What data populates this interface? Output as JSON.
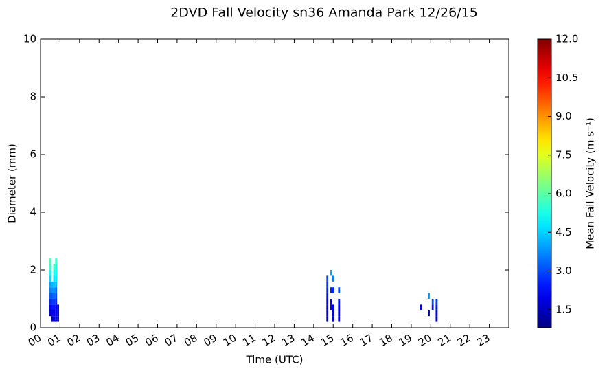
{
  "chart_data": {
    "type": "heatmap",
    "title": "2DVD Fall Velocity sn36 Amanda Park 12/26/15",
    "x_label": "Time (UTC)",
    "y_label": "Diameter (mm)",
    "colorbar_label": "Mean Fall Velocity (m s⁻¹)",
    "colormap": "jet",
    "xlim": [
      0,
      24
    ],
    "ylim": [
      0,
      10
    ],
    "clim": [
      0.8,
      12
    ],
    "xticks": [
      {
        "value": 0,
        "label": "00"
      },
      {
        "value": 1,
        "label": "01"
      },
      {
        "value": 2,
        "label": "02"
      },
      {
        "value": 3,
        "label": "03"
      },
      {
        "value": 4,
        "label": "04"
      },
      {
        "value": 5,
        "label": "05"
      },
      {
        "value": 6,
        "label": "06"
      },
      {
        "value": 7,
        "label": "07"
      },
      {
        "value": 8,
        "label": "08"
      },
      {
        "value": 9,
        "label": "09"
      },
      {
        "value": 10,
        "label": "10"
      },
      {
        "value": 11,
        "label": "11"
      },
      {
        "value": 12,
        "label": "12"
      },
      {
        "value": 13,
        "label": "13"
      },
      {
        "value": 14,
        "label": "14"
      },
      {
        "value": 15,
        "label": "15"
      },
      {
        "value": 16,
        "label": "16"
      },
      {
        "value": 17,
        "label": "17"
      },
      {
        "value": 18,
        "label": "18"
      },
      {
        "value": 19,
        "label": "19"
      },
      {
        "value": 20,
        "label": "20"
      },
      {
        "value": 21,
        "label": "21"
      },
      {
        "value": 22,
        "label": "22"
      },
      {
        "value": 23,
        "label": "23"
      }
    ],
    "yticks": [
      0,
      2,
      4,
      6,
      8,
      10
    ],
    "cticks": [
      1.5,
      {
        "value": 3,
        "label": "3.0"
      },
      4.5,
      {
        "value": 6,
        "label": "6.0"
      },
      7.5,
      {
        "value": 9,
        "label": "9.0"
      },
      10.5,
      {
        "value": 12,
        "label": "12.0"
      }
    ],
    "x": [
      0.5,
      0.5,
      0.5,
      0.5,
      0.5,
      0.5,
      0.5,
      0.5,
      0.5,
      0.5,
      0.6,
      0.6,
      0.6,
      0.6,
      0.6,
      0.6,
      0.6,
      0.7,
      0.7,
      0.7,
      0.7,
      0.7,
      0.7,
      0.7,
      0.7,
      0.7,
      0.7,
      0.8,
      0.8,
      0.8,
      0.8,
      0.8,
      0.8,
      0.8,
      0.8,
      0.8,
      0.8,
      0.8,
      0.9,
      0.9,
      0.9,
      14.7,
      14.7,
      14.7,
      14.7,
      14.7,
      14.7,
      14.7,
      14.7,
      14.9,
      14.9,
      14.9,
      14.9,
      15.0,
      15.0,
      15.0,
      15.0,
      15.0,
      15.3,
      15.3,
      15.3,
      15.3,
      15.3,
      19.5,
      19.9,
      19.9,
      20.1,
      20.1,
      20.3,
      20.3,
      20.3,
      20.3
    ],
    "y": [
      0.5,
      0.7,
      0.9,
      1.1,
      1.3,
      1.5,
      1.7,
      1.9,
      2.1,
      2.3,
      0.3,
      0.5,
      0.7,
      0.9,
      1.1,
      1.3,
      1.5,
      0.3,
      0.5,
      0.7,
      0.9,
      1.1,
      1.3,
      1.5,
      1.7,
      1.9,
      2.1,
      0.3,
      0.5,
      0.7,
      0.9,
      1.1,
      1.3,
      1.5,
      1.7,
      1.9,
      2.1,
      2.3,
      0.3,
      0.5,
      0.7,
      0.3,
      0.5,
      0.7,
      0.9,
      1.1,
      1.3,
      1.5,
      1.7,
      0.7,
      0.9,
      1.3,
      1.9,
      0.3,
      0.5,
      0.7,
      1.3,
      1.7,
      0.3,
      0.5,
      0.7,
      0.9,
      1.3,
      0.7,
      0.5,
      1.1,
      0.7,
      0.9,
      0.3,
      0.5,
      0.7,
      0.9
    ],
    "values": [
      1.8,
      2.2,
      2.6,
      3.2,
      3.6,
      4.0,
      4.6,
      5.0,
      5.6,
      5.8,
      1.8,
      2.0,
      2.4,
      2.8,
      3.2,
      3.8,
      4.2,
      1.8,
      2.0,
      2.4,
      2.8,
      3.4,
      3.8,
      4.4,
      4.8,
      5.2,
      5.6,
      1.8,
      2.0,
      2.2,
      2.6,
      3.0,
      3.4,
      4.2,
      4.8,
      5.2,
      5.4,
      5.6,
      1.8,
      2.0,
      2.2,
      1.6,
      1.8,
      2.0,
      2.2,
      2.4,
      2.6,
      2.8,
      3.0,
      2.0,
      2.2,
      2.6,
      4.0,
      1.8,
      2.0,
      2.2,
      2.6,
      3.6,
      1.8,
      2.0,
      2.2,
      2.4,
      3.0,
      2.2,
      1.2,
      3.8,
      2.4,
      3.0,
      1.8,
      2.0,
      2.4,
      2.8
    ]
  }
}
